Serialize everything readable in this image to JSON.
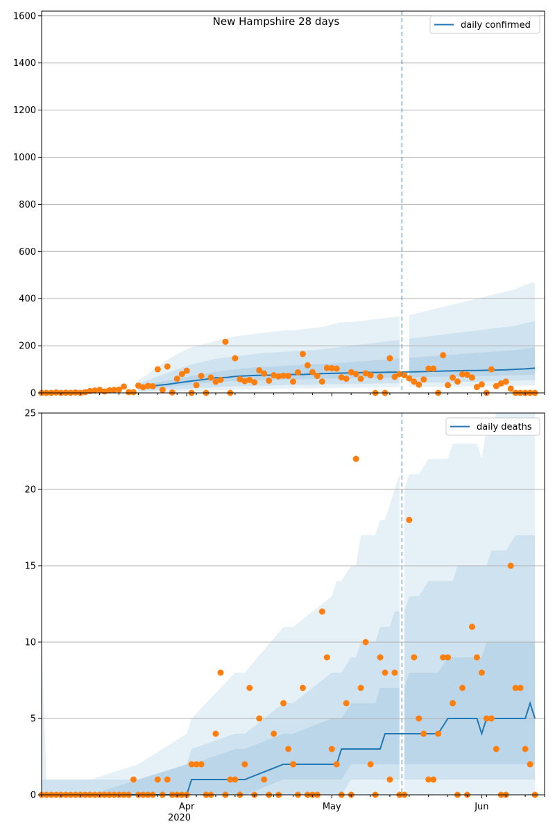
{
  "figure": {
    "title": "New Hampshire 28 days",
    "x_tick_labels": [
      "Apr",
      "May",
      "Jun"
    ],
    "x_year_label": "2020",
    "colors": {
      "line": "#1f77b4",
      "points": "#ff7f0e",
      "band": "#1f77b4",
      "grid": "#b0b0b0"
    }
  },
  "chart_data": [
    {
      "type": "line",
      "legend": "daily confirmed",
      "legend_position": "top-right",
      "grid": "y",
      "ylim": [
        0,
        1620
      ],
      "y_ticks": [
        0,
        200,
        400,
        600,
        800,
        1000,
        1200,
        1400,
        1600
      ],
      "forecast_start_day": 74,
      "x_start_date": "2020-03-02",
      "x_end_date": "2020-06-14",
      "observed_days": [
        0,
        1,
        2,
        3,
        4,
        5,
        6,
        7,
        8,
        9,
        10,
        11,
        12,
        13,
        14,
        15,
        16,
        17,
        18,
        19,
        20,
        21,
        22,
        23,
        24,
        25,
        26,
        27,
        28,
        29,
        30,
        31,
        32,
        33,
        34,
        35,
        36,
        37,
        38,
        39,
        40,
        41,
        42,
        43,
        44,
        45,
        46,
        47,
        48,
        49,
        50,
        51,
        52,
        53,
        54,
        55,
        56,
        57,
        58,
        59,
        60,
        61,
        62,
        63,
        64,
        65,
        66,
        67,
        68,
        69,
        70,
        71,
        72,
        73,
        74,
        75,
        76,
        77,
        78,
        79,
        80,
        81,
        82,
        83,
        84,
        85,
        86,
        87,
        88,
        89,
        90,
        91,
        92,
        93,
        94,
        95,
        96,
        97,
        98,
        99,
        100,
        101,
        102
      ],
      "observed": [
        0,
        0,
        0,
        2,
        0,
        1,
        0,
        2,
        0,
        3,
        8,
        10,
        13,
        6,
        11,
        13,
        14,
        27,
        3,
        3,
        31,
        24,
        30,
        28,
        100,
        13,
        112,
        2,
        60,
        80,
        94,
        0,
        33,
        72,
        0,
        65,
        47,
        55,
        217,
        0,
        147,
        58,
        50,
        55,
        45,
        96,
        82,
        52,
        75,
        70,
        73,
        72,
        48,
        87,
        165,
        117,
        88,
        72,
        48,
        106,
        105,
        103,
        66,
        60,
        88,
        80,
        60,
        83,
        75,
        0,
        68,
        0,
        147,
        68,
        80,
        75,
        62,
        48,
        35,
        57,
        103,
        103,
        0,
        160,
        33,
        65,
        48,
        79,
        77,
        65,
        25,
        36,
        0,
        100,
        29,
        40,
        48,
        18,
        0,
        0,
        0,
        0,
        0
      ],
      "median_days": [
        20,
        22,
        24,
        26,
        28,
        30,
        32,
        34,
        36,
        38,
        40,
        42,
        44,
        46,
        48,
        50,
        52,
        54,
        56,
        58,
        60,
        62,
        64,
        66,
        68,
        70,
        72,
        74,
        76,
        78,
        80,
        82,
        84,
        86,
        88,
        90,
        92,
        94,
        96,
        98,
        100,
        102
      ],
      "median": [
        22,
        28,
        32,
        36,
        42,
        48,
        53,
        58,
        64,
        65,
        70,
        72,
        74,
        75,
        75,
        78,
        78,
        78,
        80,
        82,
        83,
        84,
        85,
        86,
        87,
        87,
        88,
        88,
        89,
        90,
        91,
        92,
        93,
        94,
        95,
        95,
        96,
        97,
        98,
        100,
        102,
        105
      ],
      "bands": [
        {
          "lower": [
            2,
            3,
            4,
            5,
            6,
            7,
            9,
            10,
            11,
            12,
            14,
            15,
            16,
            17,
            17,
            18,
            19,
            19,
            20,
            20,
            21,
            21,
            22,
            22,
            23,
            23,
            24,
            24,
            25,
            25,
            26,
            26,
            27,
            27,
            28,
            28,
            29,
            29,
            30,
            30,
            31,
            32
          ],
          "upper": [
            55,
            80,
            110,
            140,
            165,
            185,
            200,
            210,
            220,
            230,
            240,
            245,
            250,
            255,
            260,
            265,
            265,
            270,
            275,
            280,
            290,
            300,
            300,
            305,
            310,
            315,
            320,
            325,
            330,
            340,
            350,
            360,
            370,
            380,
            390,
            400,
            410,
            420,
            430,
            440,
            460,
            470
          ]
        },
        {
          "lower": [
            8,
            10,
            12,
            14,
            16,
            18,
            20,
            22,
            24,
            26,
            28,
            29,
            30,
            31,
            32,
            33,
            34,
            34,
            35,
            36,
            37,
            37,
            38,
            38,
            39,
            40,
            41,
            41,
            42,
            43,
            44,
            44,
            45,
            46,
            47,
            48,
            49,
            50,
            51,
            52,
            53,
            54
          ],
          "upper": [
            40,
            55,
            70,
            85,
            100,
            115,
            125,
            135,
            145,
            150,
            155,
            160,
            165,
            170,
            172,
            175,
            178,
            180,
            182,
            185,
            190,
            195,
            200,
            205,
            210,
            215,
            220,
            225,
            230,
            235,
            240,
            245,
            250,
            255,
            260,
            265,
            270,
            275,
            280,
            285,
            295,
            305
          ]
        },
        {
          "lower": [
            14,
            18,
            22,
            26,
            30,
            34,
            38,
            42,
            46,
            48,
            50,
            52,
            54,
            55,
            56,
            57,
            58,
            58,
            59,
            60,
            61,
            62,
            62,
            63,
            64,
            64,
            65,
            65,
            66,
            67,
            68,
            69,
            69,
            70,
            71,
            71,
            72,
            73,
            74,
            75,
            76,
            78
          ],
          "upper": [
            30,
            38,
            45,
            52,
            60,
            68,
            75,
            82,
            90,
            95,
            100,
            104,
            108,
            110,
            112,
            115,
            117,
            119,
            121,
            123,
            125,
            128,
            131,
            134,
            137,
            140,
            143,
            146,
            149,
            152,
            155,
            158,
            161,
            164,
            167,
            170,
            173,
            176,
            179,
            182,
            187,
            193
          ]
        }
      ]
    },
    {
      "type": "line",
      "legend": "daily deaths",
      "legend_position": "top-right",
      "grid": "y",
      "ylim": [
        0,
        25
      ],
      "y_ticks": [
        0,
        5,
        10,
        15,
        20,
        25
      ],
      "forecast_start_day": 74,
      "x_start_date": "2020-03-02",
      "x_end_date": "2020-06-14",
      "observed_days": [
        0,
        1,
        2,
        3,
        4,
        5,
        6,
        7,
        8,
        9,
        10,
        11,
        12,
        13,
        14,
        15,
        16,
        17,
        18,
        19,
        20,
        21,
        22,
        23,
        24,
        25,
        26,
        27,
        28,
        29,
        30,
        31,
        32,
        33,
        34,
        35,
        36,
        37,
        38,
        39,
        40,
        41,
        42,
        43,
        44,
        45,
        46,
        47,
        48,
        49,
        50,
        51,
        52,
        53,
        54,
        55,
        56,
        57,
        58,
        59,
        60,
        61,
        62,
        63,
        64,
        65,
        66,
        67,
        68,
        69,
        70,
        71,
        72,
        73,
        74,
        75,
        76,
        77,
        78,
        79,
        80,
        81,
        82,
        83,
        84,
        85,
        86,
        87,
        88,
        89,
        90,
        91,
        92,
        93,
        94,
        95,
        96,
        97,
        98,
        99,
        100,
        101,
        102
      ],
      "observed": [
        0,
        0,
        0,
        0,
        0,
        0,
        0,
        0,
        0,
        0,
        0,
        0,
        0,
        0,
        0,
        0,
        0,
        0,
        0,
        1,
        0,
        0,
        0,
        0,
        1,
        0,
        1,
        0,
        0,
        0,
        0,
        2,
        2,
        2,
        0,
        0,
        4,
        8,
        0,
        1,
        1,
        0,
        2,
        7,
        0,
        5,
        1,
        0,
        4,
        0,
        6,
        3,
        2,
        0,
        7,
        0,
        0,
        0,
        12,
        9,
        3,
        2,
        0,
        6,
        0,
        22,
        7,
        10,
        2,
        0,
        9,
        8,
        1,
        8,
        0,
        0,
        18,
        9,
        5,
        4,
        1,
        1,
        4,
        9,
        9,
        6,
        0,
        7,
        0,
        11,
        9,
        8,
        5,
        5,
        3,
        0,
        0,
        15,
        7,
        7,
        3,
        2,
        0
      ],
      "median_days": [
        0,
        1,
        10,
        20,
        30,
        31,
        40,
        41,
        42,
        50,
        51,
        52,
        60,
        61,
        62,
        64,
        65,
        66,
        67,
        68,
        69,
        70,
        71,
        72,
        73,
        74,
        75,
        76,
        78,
        80,
        82,
        84,
        85,
        86,
        88,
        90,
        91,
        92,
        93,
        94,
        96,
        98,
        100,
        101,
        102
      ],
      "median": [
        0,
        0,
        0,
        0,
        0,
        1,
        1,
        1,
        1,
        2,
        2,
        2,
        2,
        2,
        3,
        3,
        3,
        3,
        3,
        3,
        3,
        3,
        4,
        4,
        4,
        4,
        4,
        4,
        4,
        4,
        4,
        5,
        5,
        5,
        5,
        5,
        4,
        5,
        5,
        5,
        5,
        5,
        5,
        6,
        5
      ],
      "bands": [
        {
          "lower": [
            0,
            0,
            0,
            0,
            0,
            0,
            0,
            0,
            0,
            0,
            0,
            0,
            0,
            0,
            0,
            0,
            0,
            0,
            0,
            0,
            0,
            0,
            0,
            0,
            0,
            0,
            0,
            0,
            0,
            0,
            0,
            0,
            0,
            0,
            0,
            0,
            0,
            0,
            0,
            0,
            0,
            0,
            0,
            0,
            0
          ],
          "upper": [
            10,
            1,
            1,
            2,
            4,
            5,
            8,
            8,
            8,
            11,
            11,
            11,
            13,
            14,
            14,
            15,
            15,
            17,
            17,
            17,
            17,
            18,
            18,
            19,
            20,
            21,
            20,
            21,
            21,
            22,
            22,
            22,
            23,
            23,
            23,
            23,
            22,
            24,
            24,
            25,
            25,
            25,
            25,
            25,
            25
          ]
        },
        {
          "lower": [
            0,
            0,
            0,
            0,
            0,
            0,
            0,
            0,
            0,
            0,
            0,
            0,
            0,
            0,
            0,
            1,
            1,
            1,
            1,
            1,
            1,
            1,
            1,
            1,
            1,
            1,
            1,
            1,
            1,
            1,
            1,
            1,
            1,
            1,
            1,
            1,
            1,
            1,
            1,
            1,
            1,
            1,
            1,
            1,
            1
          ],
          "upper": [
            1,
            1,
            1,
            1,
            2,
            3,
            4,
            4,
            4,
            6,
            6,
            6,
            8,
            8,
            8,
            9,
            9,
            10,
            10,
            10,
            10,
            11,
            11,
            11,
            12,
            12,
            12,
            13,
            13,
            14,
            14,
            14,
            14,
            15,
            15,
            15,
            15,
            15,
            16,
            16,
            16,
            17,
            17,
            17,
            17
          ]
        },
        {
          "lower": [
            0,
            0,
            0,
            0,
            0,
            0,
            0,
            0,
            0,
            1,
            1,
            1,
            1,
            1,
            1,
            2,
            2,
            2,
            2,
            2,
            2,
            2,
            2,
            2,
            2,
            2,
            2,
            2,
            2,
            2,
            2,
            2,
            2,
            2,
            2,
            2,
            2,
            2,
            2,
            2,
            2,
            2,
            2,
            2,
            2
          ],
          "upper": [
            0,
            0,
            0,
            1,
            2,
            2,
            3,
            3,
            3,
            4,
            4,
            4,
            5,
            5,
            5,
            6,
            6,
            6,
            6,
            6,
            6,
            7,
            7,
            7,
            7,
            7,
            7,
            8,
            8,
            8,
            8,
            9,
            9,
            9,
            9,
            9,
            9,
            10,
            10,
            10,
            10,
            10,
            10,
            10,
            10
          ]
        }
      ]
    }
  ]
}
